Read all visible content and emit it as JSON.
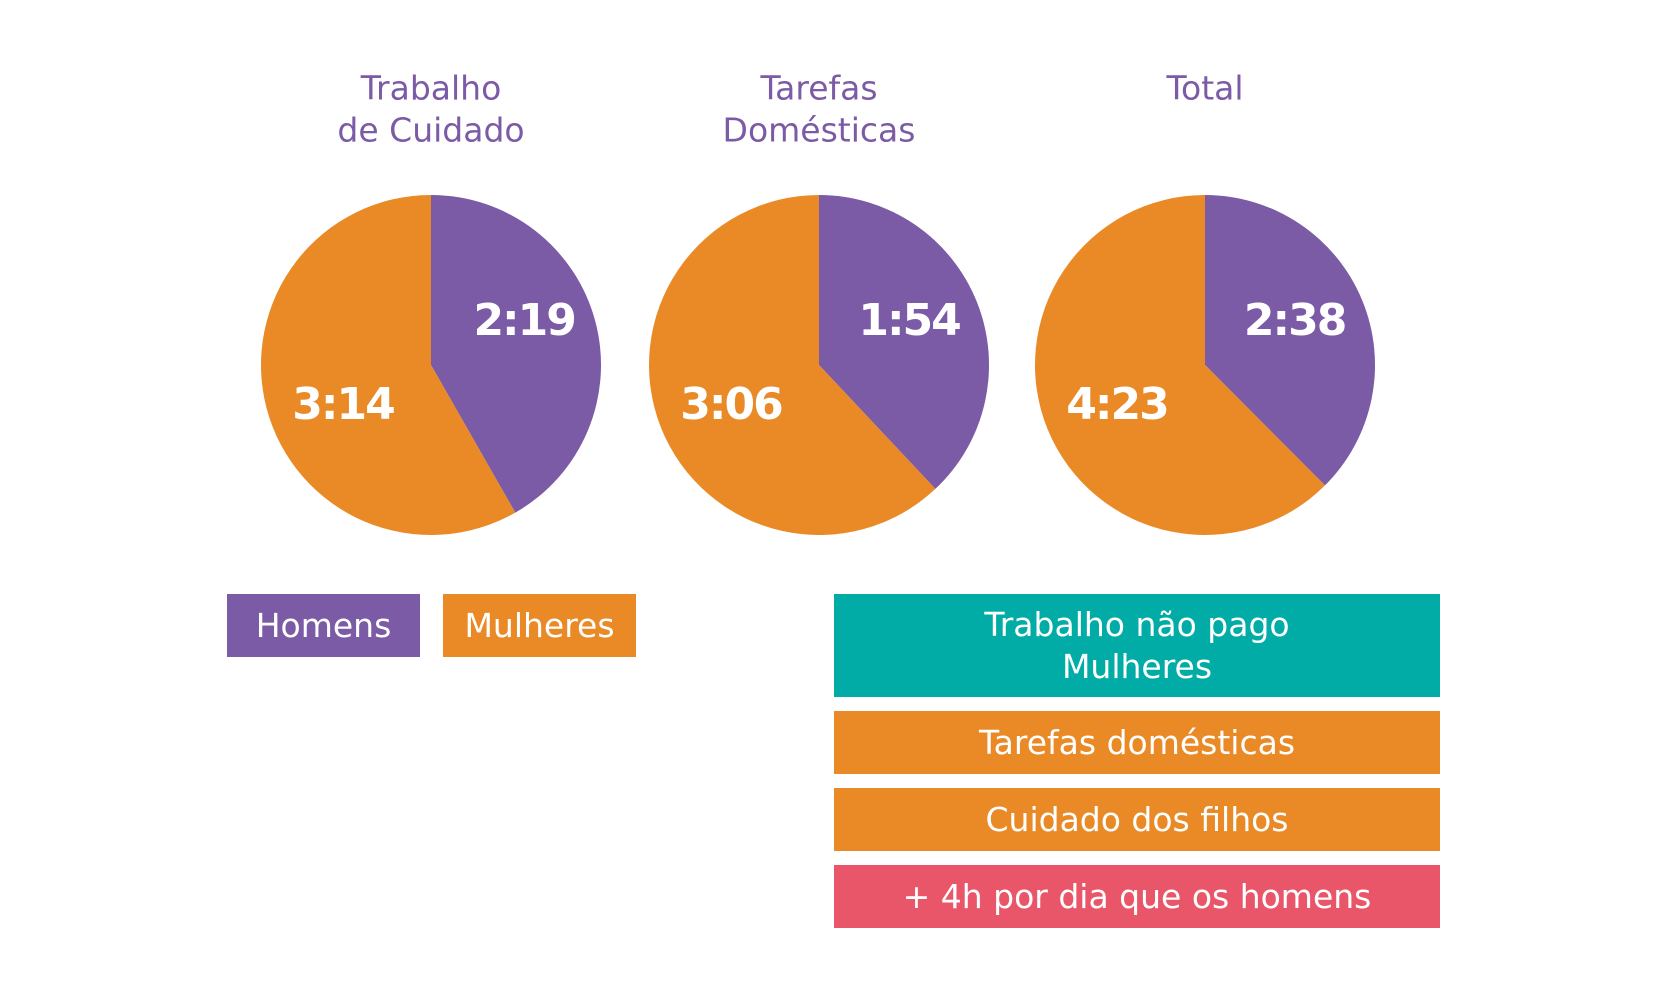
{
  "colors": {
    "homens": "#7b5aa6",
    "mulheres": "#e98a26",
    "title": "#7b5aa6",
    "teal": "#00aca5",
    "pink": "#ea5669"
  },
  "chart_data": [
    {
      "type": "pie",
      "title_lines": [
        "Trabalho",
        "de Cuidado"
      ],
      "slices": [
        {
          "name": "Homens",
          "label": "2:19",
          "value": 139
        },
        {
          "name": "Mulheres",
          "label": "3:14",
          "value": 194
        }
      ]
    },
    {
      "type": "pie",
      "title_lines": [
        "Tarefas",
        "Domésticas"
      ],
      "slices": [
        {
          "name": "Homens",
          "label": "1:54",
          "value": 114
        },
        {
          "name": "Mulheres",
          "label": "3:06",
          "value": 186
        }
      ]
    },
    {
      "type": "pie",
      "title_lines": [
        "Total"
      ],
      "slices": [
        {
          "name": "Homens",
          "label": "2:38",
          "value": 158
        },
        {
          "name": "Mulheres",
          "label": "4:23",
          "value": 263
        }
      ]
    }
  ],
  "legend": {
    "homens": "Homens",
    "mulheres": "Mulheres"
  },
  "summary": {
    "header_line1": "Trabalho não pago",
    "header_line2": "Mulheres",
    "item1": "Tarefas domésticas",
    "item2": "Cuidado dos filhos",
    "footer": "+ 4h por dia que os homens"
  }
}
